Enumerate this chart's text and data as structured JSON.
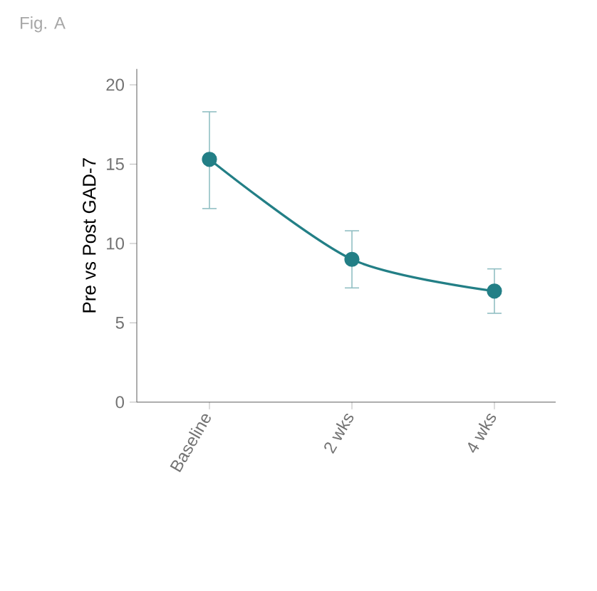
{
  "chart_data": {
    "type": "line",
    "title": "Fig. A",
    "ylabel": "Pre vs Post GAD-7",
    "categories": [
      "Baseline",
      "2 wks",
      "4 wks"
    ],
    "series": [
      {
        "color": "#237f86",
        "values": [
          15.3,
          9.0,
          7.0
        ],
        "errors": [
          [
            12.2,
            18.3
          ],
          [
            7.2,
            10.8
          ],
          [
            5.6,
            8.4
          ]
        ]
      }
    ],
    "ylim": [
      0,
      21
    ],
    "yticks": [
      0,
      5,
      10,
      15,
      20
    ],
    "marker": "circle"
  }
}
